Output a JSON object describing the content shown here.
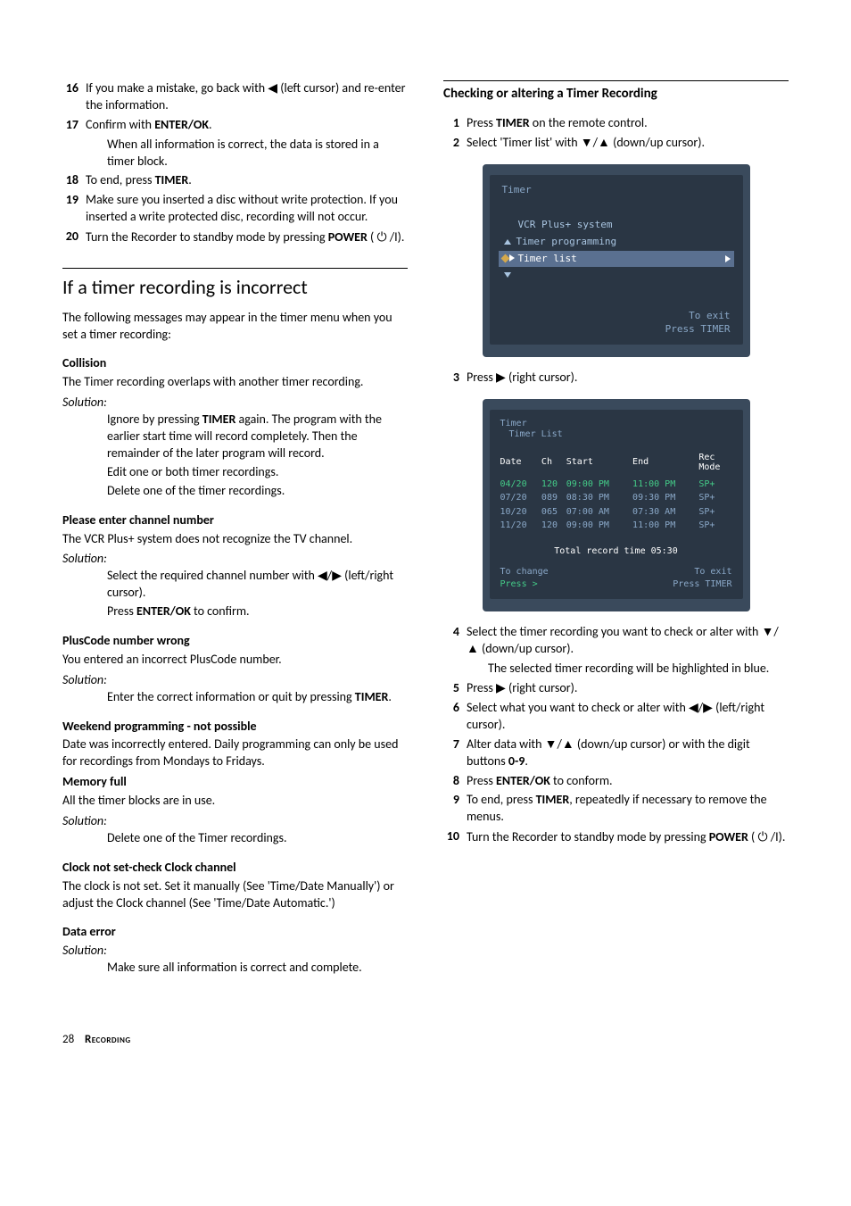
{
  "left": {
    "steps_a": [
      {
        "n": "16",
        "html": "If you make a mistake, go back with ◀ (left cursor) and re-enter the information."
      },
      {
        "n": "17",
        "html": "Confirm with <b>ENTER/OK</b>."
      }
    ],
    "step17_sub": "When all information is correct, the data is stored in a timer block.",
    "steps_b": [
      {
        "n": "18",
        "html": "To end, press <b>TIMER</b>."
      },
      {
        "n": "19",
        "html": "Make sure you inserted a disc without write protection. If you inserted a write protected disc, recording will not occur."
      },
      {
        "n": "20",
        "html": "Turn the Recorder to standby mode by pressing <b>POWER</b> ( <span class='power-sym'>⏻</span> /I)."
      }
    ],
    "h2": "If a timer recording is incorrect",
    "intro": "The following messages may appear in the timer menu when you set a timer recording:",
    "collision": {
      "head": "Collision",
      "desc": "The Timer recording overlaps with another timer recording.",
      "sol": "Solution:",
      "bullets": [
        "Ignore by pressing <b>TIMER</b> again. The program with the earlier start time will record completely. Then the remainder of the later program will record.",
        "Edit one or both timer recordings.",
        "Delete one of the timer recordings."
      ]
    },
    "channel": {
      "head": "Please enter channel number",
      "desc": "The VCR Plus+ system does not recognize the TV channel.",
      "sol": "Solution:",
      "bullets": [
        "Select the required channel number with ◀/▶ (left/right cursor).",
        "Press <b>ENTER/OK</b> to confirm."
      ]
    },
    "pluscode": {
      "head": "PlusCode number wrong",
      "desc": "You entered an incorrect PlusCode number.",
      "sol": "Solution:",
      "bullets": [
        "Enter the correct information or quit by pressing <b>TIMER</b>."
      ]
    },
    "weekend": {
      "head": "Weekend programming - not possible",
      "desc": "Date was incorrectly entered. Daily programming can only be used for recordings from Mondays to Fridays."
    },
    "memory": {
      "head": "Memory full",
      "desc": "All the timer blocks are in use.",
      "sol": "Solution:",
      "bullets": [
        "Delete one of the Timer recordings."
      ]
    },
    "clock": {
      "head": "Clock not set-check Clock channel",
      "desc": "The clock is not set. Set it manually (See 'Time/Date Manually') or adjust the Clock channel (See 'Time/Date Automatic.')"
    },
    "dataerr": {
      "head": "Data error",
      "sol": "Solution:",
      "bullets": [
        "Make sure all information is correct and complete."
      ]
    }
  },
  "right": {
    "h3": "Checking or altering a Timer Recording",
    "steps_a": [
      {
        "n": "1",
        "html": "Press <b>TIMER</b> on the remote control."
      },
      {
        "n": "2",
        "html": "Select 'Timer list' with ▼/▲ (down/up cursor)."
      }
    ],
    "step3": {
      "n": "3",
      "html": "Press ▶ (right cursor)."
    },
    "steps_b": [
      {
        "n": "4",
        "html": "Select the timer recording you want to check or alter with ▼/▲ (down/up cursor)."
      }
    ],
    "step4_sub": "The selected timer recording will be highlighted in blue.",
    "steps_c": [
      {
        "n": "5",
        "html": "Press ▶ (right cursor)."
      },
      {
        "n": "6",
        "html": "Select what you want to check or alter with ◀/▶ (left/right cursor)."
      },
      {
        "n": "7",
        "html": "Alter data with ▼/▲ (down/up cursor) or with the digit buttons <b>0-9</b>."
      },
      {
        "n": "8",
        "html": "Press <b>ENTER/OK</b> to conform."
      },
      {
        "n": "9",
        "html": "To end, press <b>TIMER</b>, repeatedly if necessary to remove the menus."
      },
      {
        "n": "10",
        "html": "Turn the Recorder to standby mode by pressing <b>POWER</b> ( <span class='power-sym'>⏻</span> /I)."
      }
    ]
  },
  "ui1": {
    "title": "Timer",
    "items": [
      "VCR Plus+ system",
      "Timer programming",
      "Timer list"
    ],
    "exit1": "To exit",
    "exit2": "Press TIMER"
  },
  "ui2": {
    "title": "Timer",
    "subtitle": "Timer List",
    "headers": [
      "Date",
      "Ch",
      "Start",
      "End",
      "Rec Mode"
    ],
    "rows": [
      [
        "04/20",
        "120",
        "09:00 PM",
        "11:00 PM",
        "SP+"
      ],
      [
        "07/20",
        "089",
        "08:30 PM",
        "09:30 PM",
        "SP+"
      ],
      [
        "10/20",
        "065",
        "07:00 AM",
        "07:30 AM",
        "SP+"
      ],
      [
        "11/20",
        "120",
        "09:00 PM",
        "11:00 PM",
        "SP+"
      ]
    ],
    "total": "Total record time 05:30",
    "change1": "To change",
    "change2": "Press >",
    "exit1": "To exit",
    "exit2": "Press TIMER"
  },
  "footer": {
    "page": "28",
    "section": "Recording"
  }
}
